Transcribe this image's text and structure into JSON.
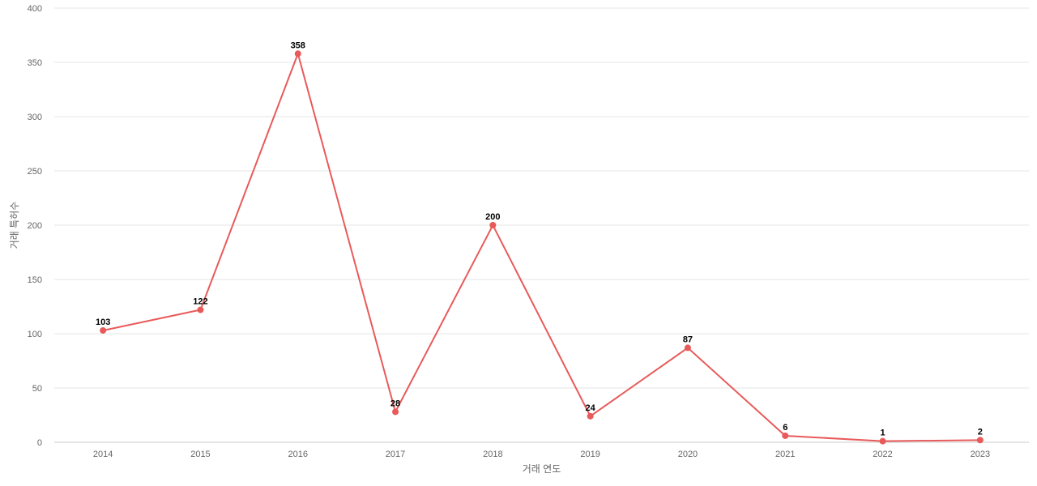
{
  "chart_data": {
    "type": "line",
    "title": "",
    "xlabel": "거래 연도",
    "ylabel": "거래 특허수",
    "categories": [
      "2014",
      "2015",
      "2016",
      "2017",
      "2018",
      "2019",
      "2020",
      "2021",
      "2022",
      "2023"
    ],
    "series": [
      {
        "values": [
          103,
          122,
          358,
          28,
          200,
          24,
          87,
          6,
          1,
          2
        ],
        "color": "#e85a5a"
      }
    ],
    "ylim": [
      0,
      400
    ],
    "yticks": [
      0,
      50,
      100,
      150,
      200,
      250,
      300,
      350,
      400
    ],
    "grid": true,
    "legend": "none",
    "data_labels": true
  }
}
